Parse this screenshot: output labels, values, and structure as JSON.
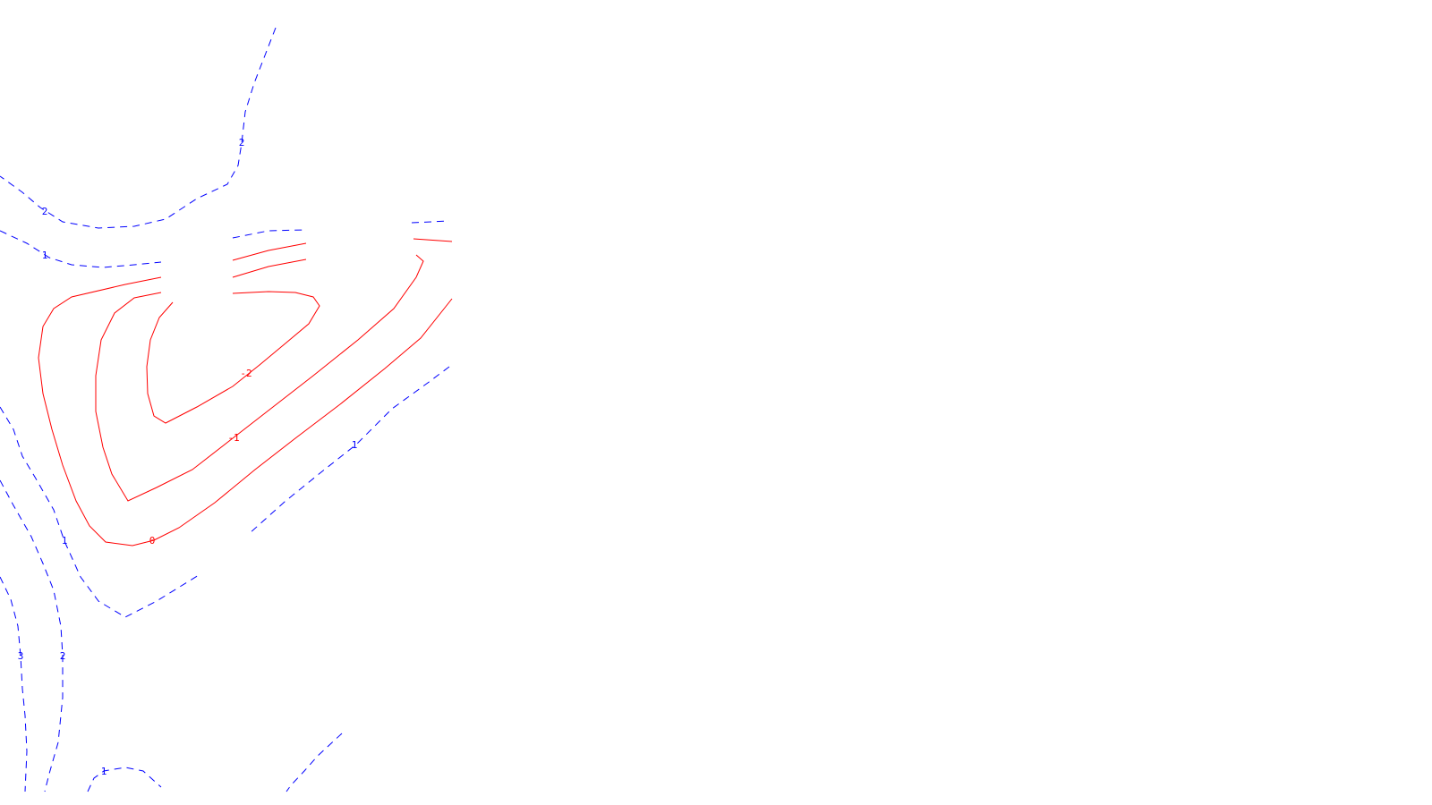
{
  "chart_data": {
    "type": "contour",
    "title": "",
    "xlabel": "",
    "ylabel": "",
    "grid": false,
    "legend": "none",
    "colors": {
      "positive": "#0000ff",
      "non_positive": "#ff0000",
      "background": "#ffffff"
    },
    "line_styles": {
      "positive": "dashed",
      "non_positive": "solid"
    },
    "levels": [
      3,
      2,
      1,
      0,
      -1,
      -2
    ],
    "contours": [
      {
        "id": "top-2",
        "level": 2,
        "label": "2"
      },
      {
        "id": "upper-2",
        "level": 2,
        "label": "2"
      },
      {
        "id": "upper-1",
        "level": 1,
        "label": "1"
      },
      {
        "id": "upper-1-frag",
        "level": 1,
        "label": ""
      },
      {
        "id": "right-1-frag",
        "level": 1,
        "label": ""
      },
      {
        "id": "left-1",
        "level": 1,
        "label": "1"
      },
      {
        "id": "diag-1",
        "level": 1,
        "label": "1"
      },
      {
        "id": "left-2",
        "level": 2,
        "label": "2"
      },
      {
        "id": "left-3",
        "level": 3,
        "label": "3"
      },
      {
        "id": "bottom-1",
        "level": 1,
        "label": "1"
      },
      {
        "id": "bottom-right-1",
        "level": 1,
        "label": ""
      },
      {
        "id": "zero",
        "level": 0,
        "label": "0"
      },
      {
        "id": "zero-frag",
        "level": 0,
        "label": ""
      },
      {
        "id": "zero-frag-2",
        "level": 0,
        "label": ""
      },
      {
        "id": "minus1",
        "level": -1,
        "label": "-1"
      },
      {
        "id": "minus1-frag",
        "level": -1,
        "label": ""
      },
      {
        "id": "minus2",
        "level": -2,
        "label": "-2"
      }
    ]
  }
}
